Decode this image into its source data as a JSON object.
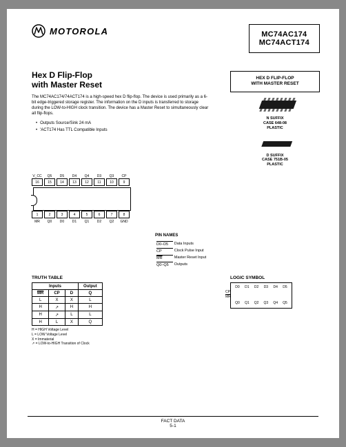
{
  "brand": "MOTOROLA",
  "part_numbers": [
    "MC74AC174",
    "MC74ACT174"
  ],
  "title_line1": "Hex D Flip-Flop",
  "title_line2": "with Master Reset",
  "subtitle_line1": "HEX D FLIP-FLOP",
  "subtitle_line2": "WITH MASTER RESET",
  "description": "The MC74AC174/74ACT174 is a high-speed hex D flip-flop. The device is used primarily as a 6-bit edge-triggered storage register. The information on the D inputs is transferred to storage during the LOW-to-HIGH clock transition. The device has a Master Reset to simultaneously clear all flip-flops.",
  "bullets": [
    "Outputs Source/Sink 24 mA",
    "'ACT174 Has TTL Compatible Inputs"
  ],
  "top_labels": [
    "V_CC",
    "Q5",
    "D5",
    "D4",
    "Q4",
    "D3",
    "Q3",
    "CP"
  ],
  "top_nums": [
    "16",
    "15",
    "14",
    "13",
    "12",
    "11",
    "10",
    "9"
  ],
  "bot_nums": [
    "1",
    "2",
    "3",
    "4",
    "5",
    "6",
    "7",
    "8"
  ],
  "bot_labels": [
    "MR",
    "Q0",
    "D0",
    "D1",
    "Q1",
    "D2",
    "Q2",
    "GND"
  ],
  "pin_names_title": "PIN NAMES",
  "pin_names": [
    {
      "sym": "D0–D5",
      "desc": "Data Inputs"
    },
    {
      "sym": "CP",
      "desc": "Clock Pulse Input"
    },
    {
      "sym": "MR",
      "desc": "Master Reset Input",
      "ol": true
    },
    {
      "sym": "Q0–Q5",
      "desc": "Outputs"
    }
  ],
  "pkg1": {
    "name": "N SUFFIX",
    "case": "CASE 648-08",
    "mat": "PLASTIC"
  },
  "pkg2": {
    "name": "D SUFFIX",
    "case": "CASE 751B-05",
    "mat": "PLASTIC"
  },
  "truth_title": "TRUTH TABLE",
  "truth_headers_group": [
    "Inputs",
    "Output"
  ],
  "truth_headers": [
    "MR",
    "CP",
    "D",
    "Q"
  ],
  "truth_rows": [
    [
      "L",
      "X",
      "X",
      "L"
    ],
    [
      "H",
      "↗",
      "H",
      "H"
    ],
    [
      "H",
      "↗",
      "L",
      "L"
    ],
    [
      "H",
      "L",
      "X",
      "Q"
    ]
  ],
  "legend": [
    "H = HIGH Voltage Level",
    "L = LOW Voltage Level",
    "X = Immaterial",
    "↗ = LOW-to-HIGH Transition of Clock"
  ],
  "logic_title": "LOGIC SYMBOL",
  "logic_top": [
    "D0",
    "D1",
    "D2",
    "D3",
    "D4",
    "D5"
  ],
  "logic_side": [
    "CP",
    "MR"
  ],
  "logic_bot": [
    "Q0",
    "Q1",
    "Q2",
    "Q3",
    "Q4",
    "Q5"
  ],
  "footer1": "FACT DATA",
  "footer2": "5-1",
  "colors": {
    "text": "#000000",
    "bg": "#ffffff"
  }
}
